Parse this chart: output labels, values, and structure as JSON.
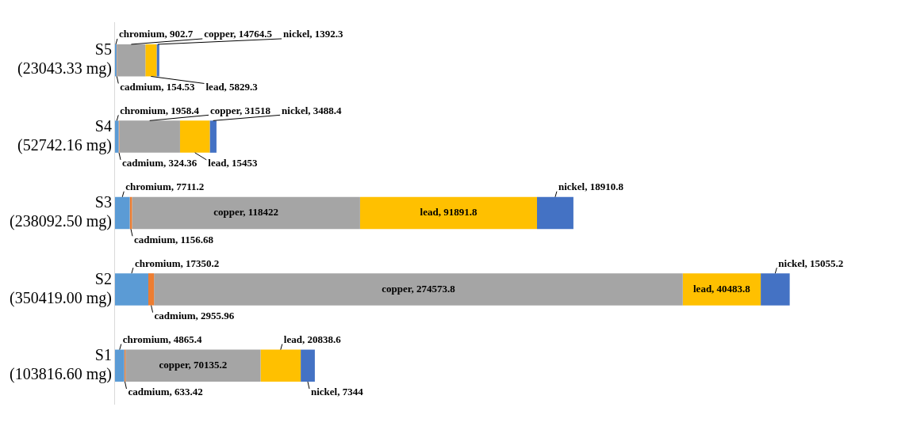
{
  "chart_data": {
    "type": "bar",
    "orientation": "horizontal",
    "stacked": true,
    "grid": false,
    "legend": false,
    "categories": [
      "S5\n(23043.33 mg)",
      "S4\n(52742.16 mg)",
      "S3\n(238092.50 mg)",
      "S2\n(350419.00 mg)",
      "S1\n(103816.60 mg)"
    ],
    "series": [
      {
        "color": "#5b9bd5",
        "values": [
          902.7,
          1958.4,
          7711.2,
          17350.2,
          4865.4
        ],
        "value_labels": [
          "chromium, 902.7",
          "chromium, 1958.4",
          "chromium, 7711.2",
          "chromium, 17350.2",
          "chromium, 4865.4"
        ]
      },
      {
        "color": "#ed7d31",
        "values": [
          154.53,
          324.36,
          1156.68,
          2955.96,
          633.42
        ],
        "value_labels": [
          "cadmium, 154.53",
          "cadmium, 324.36",
          "cadmium, 1156.68",
          "cadmium, 2955.96",
          "cadmium, 633.42"
        ]
      },
      {
        "color": "#a5a5a5",
        "values": [
          14764.5,
          31518,
          118422,
          274573.8,
          70135.2
        ],
        "value_labels": [
          "copper, 14764.5",
          "copper, 31518",
          "copper, 118422",
          "copper, 274573.8",
          "copper, 70135.2"
        ]
      },
      {
        "color": "#ffc000",
        "values": [
          5829.3,
          15453,
          91891.8,
          40483.8,
          20838.6
        ],
        "value_labels": [
          "lead, 5829.3",
          "lead, 15453",
          "lead, 91891.8",
          "lead, 40483.8",
          "lead, 20838.6"
        ]
      },
      {
        "color": "#4472c4",
        "values": [
          1392.3,
          3488.4,
          18910.8,
          15055.2,
          7344
        ],
        "value_labels": [
          "nickel, 1392.3",
          "nickel, 3488.4",
          "nickel, 18910.8",
          "nickel, 15055.2",
          "nickel, 7344"
        ]
      }
    ]
  }
}
